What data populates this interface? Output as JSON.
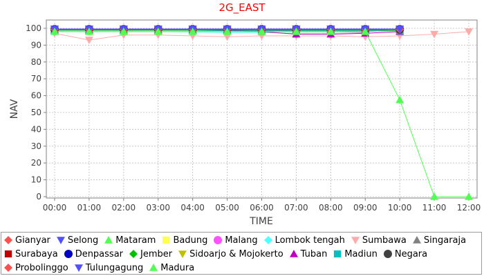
{
  "chart_data": {
    "type": "line",
    "title": "2G_EAST",
    "xlabel": "TIME",
    "ylabel": "NAV",
    "ylim": [
      0,
      100
    ],
    "yticks": [
      0,
      10,
      20,
      30,
      40,
      50,
      60,
      70,
      80,
      90,
      100
    ],
    "categories": [
      "00:00",
      "01:00",
      "02:00",
      "03:00",
      "04:00",
      "05:00",
      "06:00",
      "07:00",
      "08:00",
      "09:00",
      "10:00",
      "11:00",
      "12:00"
    ],
    "grid": true,
    "legend_position": "bottom",
    "series": [
      {
        "name": "Gianyar",
        "color": "#ff5050",
        "marker": "diamond",
        "values": [
          99.5,
          99.5,
          99.5,
          99.5,
          99.5,
          99.5,
          99.0,
          99.0,
          99.0,
          99.2,
          99.3,
          null,
          null
        ]
      },
      {
        "name": "Selong",
        "color": "#5050ff",
        "marker": "triangle-down",
        "values": [
          99.6,
          99.6,
          99.6,
          99.6,
          99.6,
          99.6,
          99.6,
          99.6,
          99.6,
          99.6,
          99.6,
          null,
          null
        ]
      },
      {
        "name": "Mataram",
        "color": "#50ff50",
        "marker": "triangle-up",
        "values": [
          98.5,
          98.5,
          98.5,
          98.5,
          98.5,
          98.5,
          98.5,
          98.5,
          98.5,
          98.5,
          98.5,
          null,
          null
        ]
      },
      {
        "name": "Badung",
        "color": "#ffff50",
        "marker": "square",
        "values": [
          99.3,
          99.3,
          99.3,
          99.3,
          99.3,
          99.3,
          99.3,
          99.3,
          99.3,
          99.3,
          99.3,
          null,
          null
        ]
      },
      {
        "name": "Malang",
        "color": "#ff50ff",
        "marker": "circle",
        "values": [
          99.3,
          99.3,
          99.3,
          99.3,
          99.3,
          99.0,
          98.8,
          98.5,
          98.0,
          97.5,
          null,
          null,
          null
        ]
      },
      {
        "name": "Lombok tengah",
        "color": "#50ffff",
        "marker": "diamond",
        "values": [
          98.0,
          98.0,
          98.0,
          98.0,
          97.8,
          97.5,
          97.5,
          97.0,
          97.0,
          97.0,
          null,
          null,
          null
        ]
      },
      {
        "name": "Sumbawa",
        "color": "#ffaaaa",
        "marker": "triangle-down",
        "values": [
          97.0,
          93.0,
          96.0,
          96.0,
          95.5,
          95.0,
          95.5,
          95.5,
          95.5,
          95.0,
          95.5,
          96.5,
          98.0
        ]
      },
      {
        "name": "Singaraja",
        "color": "#808080",
        "marker": "triangle-up",
        "values": [
          99.0,
          99.0,
          99.0,
          99.0,
          99.0,
          99.0,
          99.0,
          99.0,
          99.0,
          99.0,
          99.0,
          null,
          null
        ]
      },
      {
        "name": "Surabaya",
        "color": "#c00000",
        "marker": "square",
        "values": [
          99.4,
          99.4,
          99.4,
          99.4,
          99.4,
          99.4,
          99.4,
          99.4,
          99.4,
          99.4,
          99.4,
          null,
          null
        ]
      },
      {
        "name": "Denpassar",
        "color": "#0000c0",
        "marker": "circle",
        "values": [
          99.5,
          99.5,
          99.5,
          99.5,
          99.5,
          99.5,
          99.5,
          99.5,
          99.5,
          99.5,
          99.5,
          null,
          null
        ]
      },
      {
        "name": "Jember",
        "color": "#00c000",
        "marker": "diamond",
        "values": [
          99.0,
          99.0,
          99.0,
          99.0,
          99.0,
          99.0,
          99.0,
          99.0,
          99.0,
          99.0,
          99.0,
          null,
          null
        ]
      },
      {
        "name": "Sidoarjo & Mojokerto",
        "color": "#c0c000",
        "marker": "triangle-down",
        "values": [
          99.0,
          99.0,
          99.0,
          99.0,
          99.0,
          99.0,
          98.0,
          98.0,
          98.0,
          98.0,
          99.0,
          null,
          null
        ]
      },
      {
        "name": "Tuban",
        "color": "#c000c0",
        "marker": "triangle-up",
        "values": [
          99.0,
          99.0,
          99.0,
          99.0,
          99.0,
          99.0,
          98.0,
          96.5,
          96.5,
          97.0,
          98.0,
          null,
          null
        ]
      },
      {
        "name": "Madiun",
        "color": "#00c0c0",
        "marker": "square",
        "values": [
          99.0,
          99.0,
          99.0,
          99.0,
          99.0,
          98.5,
          98.5,
          98.5,
          98.5,
          98.5,
          98.5,
          null,
          null
        ]
      },
      {
        "name": "Negara",
        "color": "#404040",
        "marker": "circle",
        "values": [
          99.2,
          99.2,
          99.2,
          99.2,
          99.2,
          99.2,
          99.2,
          99.2,
          99.2,
          99.2,
          99.2,
          null,
          null
        ]
      },
      {
        "name": "Probolinggo",
        "color": "#ff5050",
        "marker": "diamond",
        "values": [
          99.4,
          99.4,
          99.4,
          99.4,
          99.4,
          99.4,
          99.4,
          99.4,
          99.4,
          99.4,
          99.4,
          null,
          null
        ]
      },
      {
        "name": "Tulungagung",
        "color": "#5050ff",
        "marker": "triangle-down",
        "values": [
          99.5,
          99.5,
          99.5,
          99.5,
          99.5,
          99.5,
          99.5,
          99.5,
          99.5,
          99.5,
          99.5,
          null,
          null
        ]
      },
      {
        "name": "Madura",
        "color": "#50ff50",
        "marker": "triangle-up",
        "values": [
          98.0,
          98.0,
          98.0,
          98.0,
          98.0,
          98.0,
          98.0,
          98.0,
          98.0,
          98.0,
          57.5,
          0.0,
          0.0
        ]
      }
    ]
  }
}
